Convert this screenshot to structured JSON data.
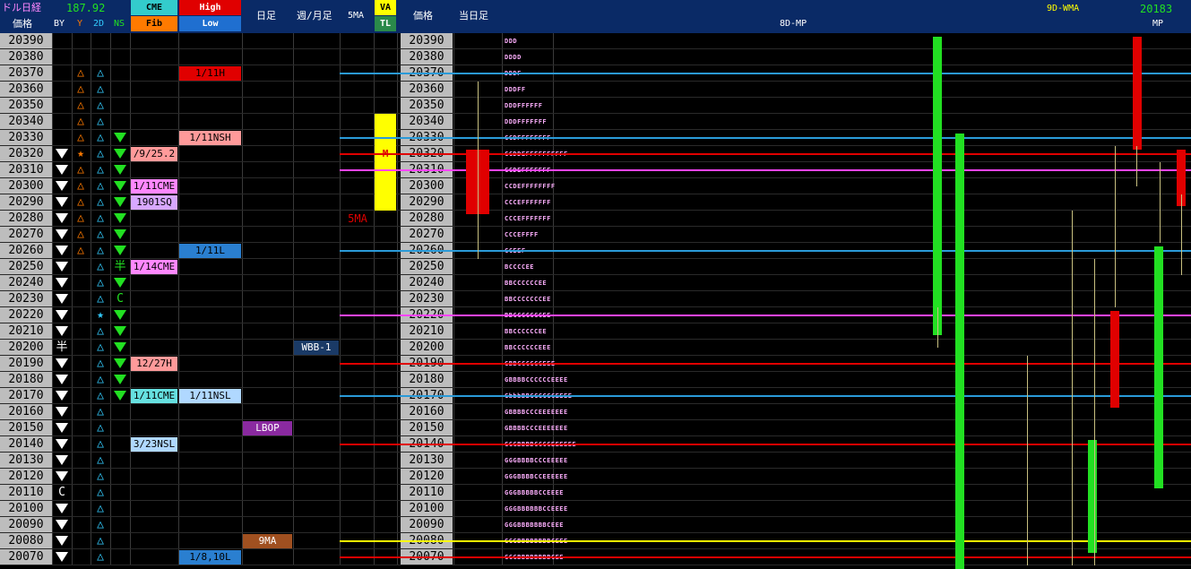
{
  "header": {
    "title": "ドル日経",
    "rate": "187.92",
    "price_label": "価格",
    "cols": [
      "BY",
      "Y",
      "2D",
      "NS"
    ],
    "cme": "CME",
    "fib": "Fib",
    "high": "High",
    "low": "Low",
    "daily": "日足",
    "weekly_monthly": "週/月足",
    "ma5": "5MA",
    "va": "VA",
    "tl": "TL",
    "price_label2": "価格",
    "today": "当日足",
    "mp8d": "8D-MP",
    "wma9d": "9D-WMA",
    "wma_value": "20183",
    "mp": "MP"
  },
  "prices": [
    "20390",
    "20380",
    "20370",
    "20360",
    "20350",
    "20340",
    "20330",
    "20320",
    "20310",
    "20300",
    "20290",
    "20280",
    "20270",
    "20260",
    "20250",
    "20240",
    "20230",
    "20220",
    "20210",
    "20200",
    "20190",
    "20180",
    "20170",
    "20160",
    "20150",
    "20140",
    "20130",
    "20120",
    "20110",
    "20100",
    "20090",
    "20080",
    "20070"
  ],
  "by_col": [
    "",
    "",
    "",
    "",
    "",
    "",
    "",
    "▼",
    "▼",
    "▼",
    "▼",
    "▼",
    "▼",
    "▼",
    "▼",
    "▼",
    "▼",
    "▼",
    "▼",
    "半",
    "▼",
    "▼",
    "▼",
    "▼",
    "▼",
    "▼",
    "▼",
    "▼",
    "C",
    "▼",
    "▼",
    "▼",
    "▼"
  ],
  "y_col": [
    "",
    "",
    "△",
    "△",
    "△",
    "△",
    "△",
    "★",
    "△",
    "△",
    "△",
    "△",
    "△",
    "△",
    "",
    "",
    "",
    "",
    "",
    "",
    "",
    "",
    "",
    "",
    "",
    "",
    "",
    "",
    "",
    "",
    "",
    "",
    ""
  ],
  "d2_col": [
    "",
    "",
    "△",
    "△",
    "△",
    "△",
    "△",
    "△",
    "△",
    "△",
    "△",
    "△",
    "△",
    "△",
    "△",
    "△",
    "△",
    "★",
    "△",
    "△",
    "△",
    "△",
    "△",
    "△",
    "△",
    "△",
    "△",
    "△",
    "△",
    "△",
    "△",
    "△",
    "△"
  ],
  "ns_col": [
    "",
    "",
    "",
    "",
    "",
    "",
    "▼",
    "▼",
    "▼",
    "▼",
    "▼",
    "▼",
    "▼",
    "▼",
    "半",
    "▼",
    "C",
    "▼",
    "▼",
    "▼",
    "▼",
    "▼",
    "▼",
    "",
    "",
    "",
    "",
    "",
    "",
    "",
    "",
    "",
    ""
  ],
  "cme_cells": [
    {
      "row": 7,
      "text": "/9/25.2",
      "bg": "#ff9a9a",
      "fg": "#000"
    },
    {
      "row": 9,
      "text": "1/11CME",
      "bg": "#ff88ff",
      "fg": "#000"
    },
    {
      "row": 10,
      "text": "1901SQ",
      "bg": "#d8a8ff",
      "fg": "#000"
    },
    {
      "row": 14,
      "text": "1/14CME",
      "bg": "#ff88ff",
      "fg": "#000"
    },
    {
      "row": 20,
      "text": "12/27H",
      "bg": "#ff9a9a",
      "fg": "#000"
    },
    {
      "row": 22,
      "text": "1/11CME",
      "bg": "#66e0e0",
      "fg": "#000"
    },
    {
      "row": 25,
      "text": "3/23NSL",
      "bg": "#b0d8ff",
      "fg": "#000"
    }
  ],
  "hl_cells": [
    {
      "row": 2,
      "text": "1/11H",
      "bg": "#e00000",
      "fg": "#000"
    },
    {
      "row": 6,
      "text": "1/11NSH",
      "bg": "#ff9a9a",
      "fg": "#000"
    },
    {
      "row": 13,
      "text": "1/11L",
      "bg": "#2a7fd0",
      "fg": "#000"
    },
    {
      "row": 22,
      "text": "1/11NSL",
      "bg": "#b0d8ff",
      "fg": "#000"
    },
    {
      "row": 32,
      "text": "1/8,10L",
      "bg": "#2a7fd0",
      "fg": "#000"
    }
  ],
  "daily_cells": [
    {
      "row": 24,
      "text": "LBOP",
      "bg": "#8a2aa0",
      "fg": "#fff"
    },
    {
      "row": 31,
      "text": "9MA",
      "bg": "#a05020",
      "fg": "#fff"
    }
  ],
  "wm_cells": [
    {
      "row": 19,
      "text": "WBB-1",
      "bg": "#1a3a66",
      "fg": "#fff"
    }
  ],
  "ma5_label": "5MA",
  "va_mark": "M",
  "tpo": [
    "DDD",
    "DDDD",
    "DDDF",
    "DDDFF",
    "DDDFFFFFF",
    "DDDFFFFFFF",
    "CCDFFFFFFFF",
    "CCDDEFFFFFFFFFF",
    "CCDEFFFFFFF",
    "CCDEFFFFFFFF",
    "CCCEFFFFFFF",
    "CCCEFFFFFFF",
    "CCCEFFFF",
    "CCEEF",
    "BCCCCEE",
    "BBCCCCCCEE",
    "BBCCCCCCCEE",
    "BBCCCCCCCEE",
    "BBCCCCCCEE",
    "BBCCCCCCEEE",
    "GBBCCCCCCEEE",
    "GBBBBCCCCCCEEEE",
    "GbbbBBCCCCCCEEEE",
    "GBBBBCCCEEEEEEE",
    "GBBBBCCCEEEEEEE",
    "GGGBBBBCCCCEEEEEE",
    "GGGBBBBCCCEEEEE",
    "GGGBBBBCCEEEEEE",
    "GGGBBBBBCCEEEE",
    "GGGBBBBBBCCEEEE",
    "GGGBBBBBBBCEEE",
    "GGGBBBBBBBBCEEE",
    "GGGBBBBBBBBCEE"
  ],
  "colors": {
    "header_bg": "#0a2a66",
    "price_bg": "#bdbdbd",
    "green": "#22e022",
    "red": "#e00000",
    "orange": "#ff7a00",
    "yellow": "#ffff00",
    "cme_bg": "#33cccc",
    "high_bg": "#e00000",
    "low_bg": "#1f6fd0",
    "fib_bg": "#ff7a00"
  }
}
